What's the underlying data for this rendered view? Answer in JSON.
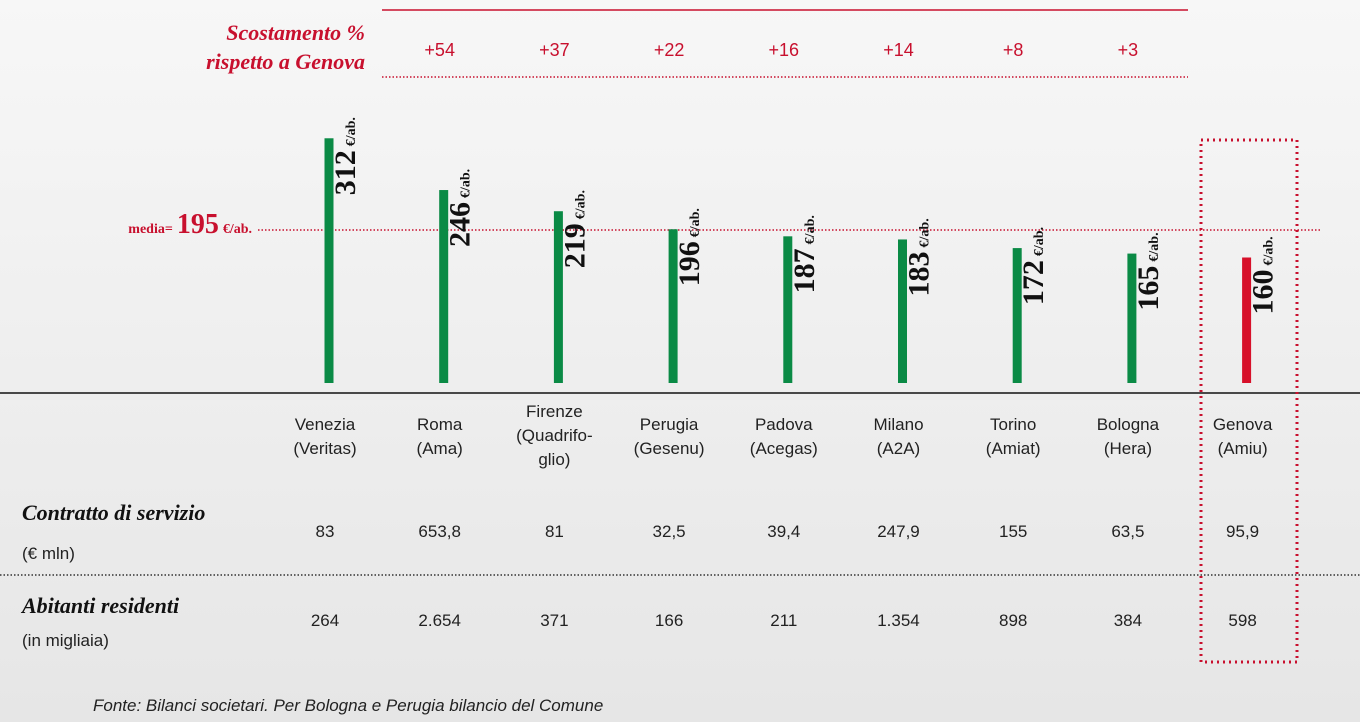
{
  "chart_data": {
    "type": "bar",
    "deviation_title": [
      "Scostamento %",
      "rispetto a Genova"
    ],
    "categories": [
      [
        "Venezia",
        "(Veritas)"
      ],
      [
        "Roma",
        "(Ama)"
      ],
      [
        "Firenze",
        "(Quadrifo-",
        "glio)"
      ],
      [
        "Perugia",
        "(Gesenu)"
      ],
      [
        "Padova",
        "(Acegas)"
      ],
      [
        "Milano",
        "(A2A)"
      ],
      [
        "Torino",
        "(Amiat)"
      ],
      [
        "Bologna",
        "(Hera)"
      ],
      [
        "Genova",
        "(Amiu)"
      ]
    ],
    "values": [
      312,
      246,
      219,
      196,
      187,
      183,
      172,
      165,
      160
    ],
    "value_unit": "€/ab.",
    "colors": [
      "#0a8a45",
      "#0a8a45",
      "#0a8a45",
      "#0a8a45",
      "#0a8a45",
      "#0a8a45",
      "#0a8a45",
      "#0a8a45",
      "#d7102a"
    ],
    "deviations": [
      null,
      54,
      37,
      22,
      16,
      14,
      8,
      3,
      null
    ],
    "deviation_labels": [
      null,
      "+54",
      "+37",
      "+22",
      "+16",
      "+14",
      "+8",
      "+3",
      null
    ],
    "mean_label": "media=",
    "mean": 195,
    "ylim": [
      0,
      320
    ]
  },
  "table": {
    "rows": [
      {
        "label": "Contratto di servizio",
        "unit": "(€ mln)",
        "values": [
          "83",
          "653,8",
          "81",
          "32,5",
          "39,4",
          "247,9",
          "155",
          "63,5",
          "95,9"
        ]
      },
      {
        "label": "Abitanti residenti",
        "unit": "(in migliaia)",
        "values": [
          "264",
          "2.654",
          "371",
          "166",
          "211",
          "1.354",
          "898",
          "384",
          "598"
        ]
      }
    ]
  },
  "source": "Fonte: Bilanci societari. Per Bologna e Perugia bilancio del Comune"
}
